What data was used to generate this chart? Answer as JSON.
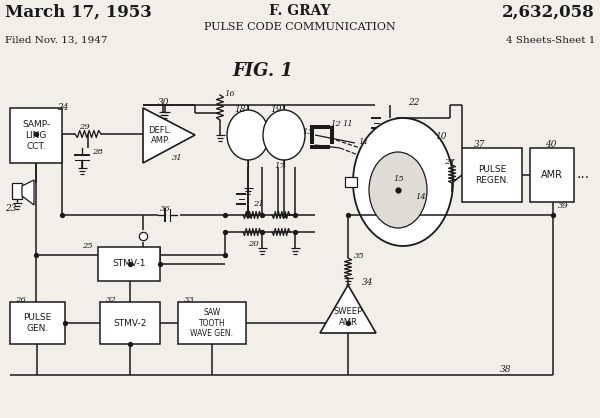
{
  "bg": "#f2efe9",
  "lc": "#1a1a1a",
  "h1l": "March 17, 1953",
  "h1c": "F. GRAY",
  "h1r": "2,632,058",
  "h2": "PULSE CODE COMMUNICATION",
  "filed": "Filed Nov. 13, 1947",
  "sheets": "4 Sheets-Sheet 1",
  "figlabel": "FIG. 1"
}
